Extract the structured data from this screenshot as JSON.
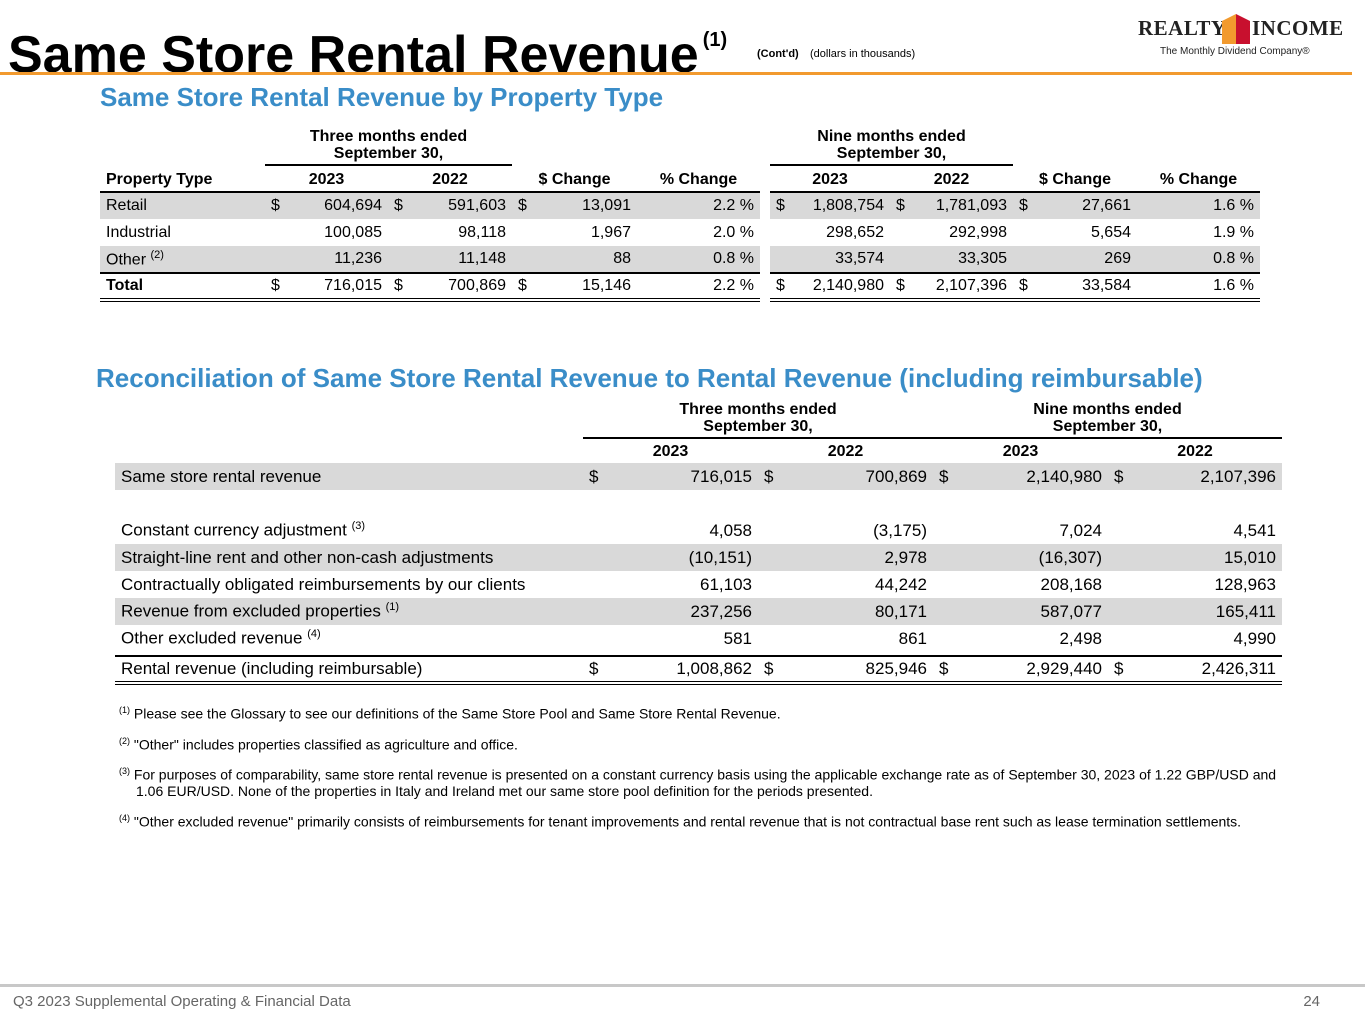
{
  "header": {
    "title": "Same Store Rental Revenue",
    "title_note": "(1)",
    "contd": "(Cont'd)",
    "units": "(dollars in thousands)",
    "logo_left": "REALTY",
    "logo_right": "INCOME",
    "tagline": "The Monthly Dividend Company®"
  },
  "table1": {
    "title": "Same Store Rental Revenue by Property Type",
    "groups": [
      "Three months ended September 30,",
      "Nine months ended September 30,"
    ],
    "columns": [
      "Property Type",
      "2023",
      "2022",
      "$ Change",
      "% Change",
      "2023",
      "2022",
      "$ Change",
      "% Change"
    ],
    "rows": [
      {
        "label": "Retail",
        "cells": [
          [
            "$",
            "604,694"
          ],
          [
            "$",
            "591,603"
          ],
          [
            "$",
            "13,091"
          ],
          "2.2 %",
          [
            "$",
            "1,808,754"
          ],
          [
            "$",
            "1,781,093"
          ],
          [
            "$",
            "27,661"
          ],
          "1.6 %"
        ]
      },
      {
        "label": "Industrial",
        "cells": [
          "100,085",
          "98,118",
          "1,967",
          "2.0 %",
          "298,652",
          "292,998",
          "5,654",
          "1.9 %"
        ]
      },
      {
        "label": "Other",
        "note": "(2)",
        "cells": [
          "11,236",
          "11,148",
          "88",
          "0.8 %",
          "33,574",
          "33,305",
          "269",
          "0.8 %"
        ]
      },
      {
        "label": "Total",
        "cells": [
          [
            "$",
            "716,015"
          ],
          [
            "$",
            "700,869"
          ],
          [
            "$",
            "15,146"
          ],
          "2.2 %",
          [
            "$",
            "2,140,980"
          ],
          [
            "$",
            "2,107,396"
          ],
          [
            "$",
            "33,584"
          ],
          "1.6 %"
        ]
      }
    ]
  },
  "table2": {
    "title": "Reconciliation of Same Store Rental Revenue to Rental Revenue (including reimbursable)",
    "groups": [
      "Three months ended September 30,",
      "Nine months ended September 30,"
    ],
    "columns": [
      "2023",
      "2022",
      "2023",
      "2022"
    ],
    "rows": [
      {
        "label": "Same store rental revenue",
        "cells": [
          [
            "$",
            "716,015"
          ],
          [
            "$",
            "700,869"
          ],
          [
            "$",
            "2,140,980"
          ],
          [
            "$",
            "2,107,396"
          ]
        ]
      },
      {
        "label": "Constant currency adjustment",
        "note": "(3)",
        "cells": [
          "4,058",
          "(3,175)",
          "7,024",
          "4,541"
        ]
      },
      {
        "label": "Straight-line rent and other non-cash adjustments",
        "cells": [
          "(10,151)",
          "2,978",
          "(16,307)",
          "15,010"
        ]
      },
      {
        "label": "Contractually obligated reimbursements by our clients",
        "cells": [
          "61,103",
          "44,242",
          "208,168",
          "128,963"
        ]
      },
      {
        "label": "Revenue from excluded properties",
        "note": "(1)",
        "cells": [
          "237,256",
          "80,171",
          "587,077",
          "165,411"
        ]
      },
      {
        "label": "Other excluded revenue",
        "note": "(4)",
        "cells": [
          "581",
          "861",
          "2,498",
          "4,990"
        ]
      },
      {
        "label": "Rental revenue (including reimbursable)",
        "cells": [
          [
            "$",
            "1,008,862"
          ],
          [
            "$",
            "825,946"
          ],
          [
            "$",
            "2,929,440"
          ],
          [
            "$",
            "2,426,311"
          ]
        ]
      }
    ]
  },
  "footnotes": [
    {
      "mark": "(1)",
      "text": "Please see the Glossary to see our definitions of the Same Store Pool and Same Store Rental Revenue."
    },
    {
      "mark": "(2)",
      "text": "\"Other\" includes properties classified as agriculture and office."
    },
    {
      "mark": "(3)",
      "text": "For purposes of comparability, same store rental revenue is presented on a constant currency basis using the applicable exchange rate as of September 30, 2023 of 1.22 GBP/USD  and 1.06 EUR/USD. None of the properties in Italy and Ireland met our same store pool definition for the periods presented."
    },
    {
      "mark": "(4)",
      "text": "\"Other excluded revenue\" primarily consists of reimbursements for tenant improvements and rental revenue that is not contractual base rent such as lease termination settlements."
    }
  ],
  "footer": {
    "left": "Q3 2023 Supplemental Operating & Financial Data",
    "page": "24"
  }
}
